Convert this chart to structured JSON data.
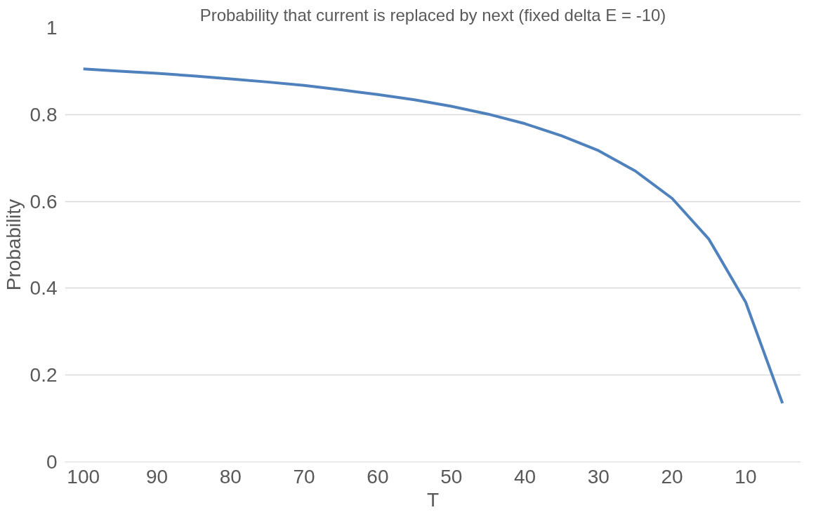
{
  "chart_data": {
    "type": "line",
    "title": "Probability that current is replaced by next (fixed delta E = -10)",
    "xlabel": "T",
    "ylabel": "Probability",
    "categories": [
      "100",
      null,
      "90",
      null,
      "80",
      null,
      "70",
      null,
      "60",
      null,
      "50",
      null,
      "40",
      null,
      "30",
      null,
      "20",
      null,
      "10",
      null
    ],
    "series": [
      {
        "color": "#4f81bd",
        "values": [
          0.905,
          0.9,
          0.895,
          0.889,
          0.882,
          0.875,
          0.867,
          0.857,
          0.846,
          0.834,
          0.819,
          0.801,
          0.779,
          0.751,
          0.717,
          0.67,
          0.607,
          0.513,
          0.368,
          0.135
        ]
      }
    ],
    "ylim": [
      0,
      1
    ],
    "yticks": [
      0,
      0.2,
      0.4,
      0.6,
      0.8,
      1
    ],
    "grid": "y",
    "marker": "none",
    "line_style": "solid"
  }
}
